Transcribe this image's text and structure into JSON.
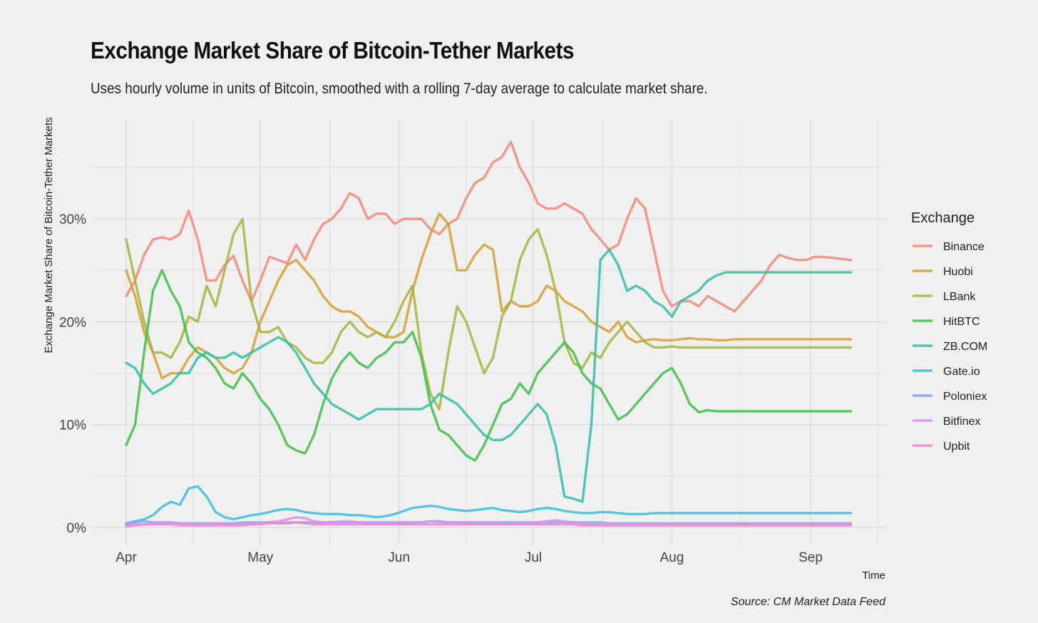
{
  "chart_data": {
    "type": "line",
    "title": "Exchange Market Share of Bitcoin-Tether Markets",
    "subtitle": "Uses hourly volume in units of Bitcoin, smoothed with a rolling 7-day average to calculate market share.",
    "xlabel": "Time",
    "ylabel": "Exchange Market Share of Bitcoin-Tether Markets",
    "caption": "Source: CM Market Data Feed",
    "legend_title": "Exchange",
    "legend_position": "right",
    "grid": true,
    "x_ticks": [
      "Apr",
      "May",
      "Jun",
      "Jul",
      "Aug",
      "Sep"
    ],
    "x_tick_days": [
      0,
      30,
      61,
      91,
      122,
      153
    ],
    "xlim": [
      0,
      163
    ],
    "y_ticks": [
      "0%",
      "10%",
      "20%",
      "30%"
    ],
    "ylim": [
      -1.5,
      39
    ],
    "x": [
      0,
      2,
      4,
      6,
      8,
      10,
      12,
      14,
      16,
      18,
      20,
      22,
      24,
      26,
      28,
      30,
      32,
      34,
      36,
      38,
      40,
      42,
      44,
      46,
      48,
      50,
      52,
      54,
      56,
      58,
      60,
      62,
      64,
      66,
      68,
      70,
      72,
      74,
      76,
      78,
      80,
      82,
      84,
      86,
      88,
      90,
      92,
      94,
      96,
      98,
      100,
      102,
      104,
      106,
      108,
      110,
      112,
      114,
      116,
      118,
      120,
      122,
      124,
      126,
      128,
      130,
      132,
      134,
      136,
      138,
      140,
      142,
      144,
      146,
      148,
      150,
      152,
      154,
      156,
      158,
      160,
      162
    ],
    "series": [
      {
        "name": "Binance",
        "color": "#f08878",
        "values": [
          22.5,
          24,
          26.5,
          28,
          28.2,
          28,
          28.5,
          30.8,
          28,
          24,
          24,
          25.5,
          26.4,
          24,
          22,
          24,
          26.3,
          26,
          25.7,
          27.5,
          26,
          28,
          29.5,
          30,
          31,
          32.5,
          32,
          30,
          30.5,
          30.5,
          29.5,
          30,
          30,
          30,
          29,
          28.5,
          29.5,
          30,
          32,
          33.5,
          34,
          35.5,
          36,
          37.5,
          35,
          33.5,
          31.5,
          31,
          31,
          31.5,
          31,
          30.5,
          29,
          28,
          27,
          27.5,
          30,
          32,
          31,
          27,
          23,
          21.5,
          22,
          22,
          21.5,
          22.5,
          22,
          21.5,
          21,
          22,
          23,
          24,
          25.5,
          26.5,
          26.2,
          26,
          26,
          26.3,
          26.3,
          26.2,
          26.1,
          26.0
        ]
      },
      {
        "name": "Huobi",
        "color": "#d4a030",
        "values": [
          25,
          22.5,
          19,
          17,
          14.5,
          15,
          15,
          16.5,
          17.5,
          17,
          16.5,
          15.5,
          15,
          15.5,
          17,
          20,
          22,
          24,
          25.5,
          26,
          25,
          24,
          22.5,
          21.5,
          21,
          21,
          20.5,
          19.5,
          19,
          18.5,
          18.5,
          19,
          23,
          26,
          28.5,
          30.5,
          29.5,
          25,
          25,
          26.5,
          27.5,
          27,
          21,
          22,
          21.5,
          21.5,
          22,
          23.5,
          23,
          22,
          21.5,
          21,
          20,
          19.5,
          19,
          20,
          18.5,
          18,
          18.2,
          18.3,
          18.2,
          18.2,
          18.3,
          18.4,
          18.3,
          18.3,
          18.2,
          18.2,
          18.3,
          18.3,
          18.3,
          18.3,
          18.3,
          18.3,
          18.3,
          18.3,
          18.3,
          18.3,
          18.3,
          18.3,
          18.3,
          18.3
        ]
      },
      {
        "name": "LBank",
        "color": "#a8b43a",
        "values": [
          28,
          24,
          20,
          17,
          17,
          16.5,
          18,
          20.5,
          20,
          23.5,
          21.5,
          25,
          28.5,
          30,
          22,
          19,
          19,
          19.5,
          18,
          17.5,
          16.5,
          16,
          16,
          17,
          19,
          20,
          19,
          18.5,
          19,
          18.5,
          20,
          22,
          23.5,
          17,
          13,
          11.5,
          17,
          21.5,
          20,
          17.5,
          15,
          16.5,
          20.5,
          22,
          26,
          28,
          29,
          26.5,
          23,
          18,
          16,
          15.5,
          17,
          16.5,
          18,
          19,
          20,
          19,
          18,
          17.5,
          17.5,
          17.6,
          17.5,
          17.5,
          17.5,
          17.5,
          17.5,
          17.5,
          17.5,
          17.5,
          17.5,
          17.5,
          17.5,
          17.5,
          17.5,
          17.5,
          17.5,
          17.5,
          17.5,
          17.5,
          17.5,
          17.5
        ]
      },
      {
        "name": "HitBTC",
        "color": "#3ec048",
        "values": [
          8,
          10,
          17,
          23,
          25,
          23,
          21.5,
          18,
          17,
          16.5,
          15.5,
          14,
          13.5,
          15,
          14,
          12.5,
          11.5,
          10,
          8,
          7.5,
          7.2,
          9,
          12,
          14.5,
          16,
          17,
          16,
          15.5,
          16.5,
          17,
          18,
          18,
          19,
          16.5,
          12,
          9.5,
          9,
          8,
          7,
          6.5,
          8,
          10,
          12,
          12.5,
          14,
          13,
          15,
          16,
          17,
          18,
          17,
          15,
          14,
          13.5,
          12,
          10.5,
          11,
          12,
          13,
          14,
          15,
          15.5,
          14,
          12,
          11.2,
          11.4,
          11.3,
          11.3,
          11.3,
          11.3,
          11.3,
          11.3,
          11.3,
          11.3,
          11.3,
          11.3,
          11.3,
          11.3,
          11.3,
          11.3,
          11.3,
          11.3
        ]
      },
      {
        "name": "ZB.COM",
        "color": "#32c0a4",
        "values": [
          16,
          15.5,
          14,
          13,
          13.5,
          14,
          15,
          15,
          16.5,
          17,
          16.5,
          16.5,
          17,
          16.5,
          17,
          17.5,
          18,
          18.5,
          18,
          17,
          15.5,
          14,
          13,
          12,
          11.5,
          11,
          10.5,
          11,
          11.5,
          11.5,
          11.5,
          11.5,
          11.5,
          11.5,
          12,
          13,
          12.5,
          12,
          11,
          10,
          9,
          8.5,
          8.5,
          9,
          10,
          11,
          12,
          11,
          8,
          3,
          2.8,
          2.5,
          10,
          26,
          27,
          25.5,
          23,
          23.5,
          23,
          22,
          21.5,
          20.5,
          22,
          22.5,
          23,
          24,
          24.5,
          24.8,
          24.8,
          24.8,
          24.8,
          24.8,
          24.8,
          24.8,
          24.8,
          24.8,
          24.8,
          24.8,
          24.8,
          24.8,
          24.8,
          24.8
        ]
      },
      {
        "name": "Gate.io",
        "color": "#38c0d8",
        "values": [
          0.4,
          0.6,
          0.8,
          1.2,
          2,
          2.5,
          2.2,
          3.8,
          4,
          3,
          1.5,
          1,
          0.8,
          1,
          1.2,
          1.3,
          1.5,
          1.7,
          1.8,
          1.7,
          1.5,
          1.4,
          1.3,
          1.3,
          1.3,
          1.2,
          1.2,
          1.1,
          1.0,
          1.1,
          1.3,
          1.6,
          1.9,
          2.0,
          2.1,
          2.0,
          1.8,
          1.7,
          1.6,
          1.7,
          1.8,
          1.9,
          1.7,
          1.6,
          1.5,
          1.6,
          1.8,
          1.9,
          1.8,
          1.6,
          1.5,
          1.4,
          1.4,
          1.5,
          1.5,
          1.4,
          1.3,
          1.3,
          1.3,
          1.4,
          1.4,
          1.4,
          1.4,
          1.4,
          1.4,
          1.4,
          1.4,
          1.4,
          1.4,
          1.4,
          1.4,
          1.4,
          1.4,
          1.4,
          1.4,
          1.4,
          1.4,
          1.4,
          1.4,
          1.4,
          1.4,
          1.4
        ]
      },
      {
        "name": "Poloniex",
        "color": "#7ca8f0",
        "values": [
          0.3,
          0.5,
          0.6,
          0.5,
          0.5,
          0.5,
          0.4,
          0.4,
          0.4,
          0.4,
          0.4,
          0.4,
          0.4,
          0.5,
          0.5,
          0.5,
          0.5,
          0.4,
          0.4,
          0.5,
          0.5,
          0.5,
          0.5,
          0.5,
          0.5,
          0.5,
          0.5,
          0.5,
          0.5,
          0.5,
          0.5,
          0.5,
          0.5,
          0.5,
          0.6,
          0.6,
          0.5,
          0.5,
          0.5,
          0.5,
          0.5,
          0.5,
          0.5,
          0.5,
          0.5,
          0.5,
          0.5,
          0.5,
          0.5,
          0.5,
          0.5,
          0.5,
          0.5,
          0.5,
          0.4,
          0.4,
          0.4,
          0.4,
          0.4,
          0.4,
          0.4,
          0.4,
          0.4,
          0.4,
          0.4,
          0.4,
          0.4,
          0.4,
          0.4,
          0.4,
          0.4,
          0.4,
          0.4,
          0.4,
          0.4,
          0.4,
          0.4,
          0.4,
          0.4,
          0.4,
          0.4,
          0.4
        ]
      },
      {
        "name": "Bitfinex",
        "color": "#d890f0",
        "values": [
          0.2,
          0.3,
          0.3,
          0.4,
          0.4,
          0.5,
          0.4,
          0.3,
          0.3,
          0.3,
          0.4,
          0.3,
          0.3,
          0.3,
          0.4,
          0.4,
          0.5,
          0.6,
          0.8,
          1.0,
          0.9,
          0.6,
          0.5,
          0.5,
          0.6,
          0.6,
          0.5,
          0.4,
          0.4,
          0.4,
          0.4,
          0.4,
          0.4,
          0.5,
          0.6,
          0.5,
          0.5,
          0.5,
          0.4,
          0.4,
          0.4,
          0.4,
          0.4,
          0.3,
          0.4,
          0.4,
          0.5,
          0.6,
          0.7,
          0.6,
          0.5,
          0.4,
          0.3,
          0.3,
          0.3,
          0.3,
          0.3,
          0.3,
          0.3,
          0.3,
          0.3,
          0.3,
          0.3,
          0.3,
          0.3,
          0.3,
          0.3,
          0.3,
          0.3,
          0.3,
          0.3,
          0.3,
          0.3,
          0.3,
          0.3,
          0.3,
          0.3,
          0.3,
          0.3,
          0.3,
          0.3,
          0.3
        ]
      },
      {
        "name": "Upbit",
        "color": "#f08ac8",
        "values": [
          0.1,
          0.2,
          0.3,
          0.3,
          0.3,
          0.3,
          0.2,
          0.2,
          0.2,
          0.2,
          0.2,
          0.2,
          0.2,
          0.2,
          0.3,
          0.3,
          0.4,
          0.4,
          0.5,
          0.5,
          0.4,
          0.3,
          0.3,
          0.3,
          0.3,
          0.3,
          0.3,
          0.3,
          0.3,
          0.3,
          0.3,
          0.3,
          0.3,
          0.3,
          0.3,
          0.3,
          0.3,
          0.3,
          0.3,
          0.3,
          0.3,
          0.3,
          0.3,
          0.3,
          0.3,
          0.3,
          0.3,
          0.3,
          0.3,
          0.3,
          0.3,
          0.2,
          0.2,
          0.2,
          0.2,
          0.2,
          0.2,
          0.2,
          0.2,
          0.2,
          0.2,
          0.2,
          0.2,
          0.2,
          0.2,
          0.2,
          0.2,
          0.2,
          0.2,
          0.2,
          0.2,
          0.2,
          0.2,
          0.2,
          0.2,
          0.2,
          0.2,
          0.2,
          0.2,
          0.2,
          0.2,
          0.2
        ]
      }
    ]
  }
}
